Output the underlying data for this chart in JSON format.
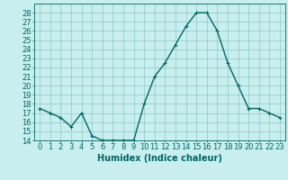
{
  "x": [
    0,
    1,
    2,
    3,
    4,
    5,
    6,
    7,
    8,
    9,
    10,
    11,
    12,
    13,
    14,
    15,
    16,
    17,
    18,
    19,
    20,
    21,
    22,
    23
  ],
  "y": [
    17.5,
    17.0,
    16.5,
    15.5,
    17.0,
    14.5,
    14.0,
    14.0,
    14.0,
    14.0,
    18.0,
    21.0,
    22.5,
    24.5,
    26.5,
    28.0,
    28.0,
    26.0,
    22.5,
    20.0,
    17.5,
    17.5,
    17.0,
    16.5
  ],
  "line_color": "#006666",
  "marker": "+",
  "marker_size": 3,
  "marker_color": "#006666",
  "bg_color": "#c8eeee",
  "grid_color": "#80c0c0",
  "xlabel": "Humidex (Indice chaleur)",
  "xlabel_fontsize": 7,
  "tick_color": "#006666",
  "ylim": [
    14,
    29
  ],
  "xlim": [
    -0.5,
    23.5
  ],
  "yticks": [
    14,
    15,
    16,
    17,
    18,
    19,
    20,
    21,
    22,
    23,
    24,
    25,
    26,
    27,
    28
  ],
  "xticks": [
    0,
    1,
    2,
    3,
    4,
    5,
    6,
    7,
    8,
    9,
    10,
    11,
    12,
    13,
    14,
    15,
    16,
    17,
    18,
    19,
    20,
    21,
    22,
    23
  ],
  "tick_fontsize": 6,
  "linewidth": 1.0
}
